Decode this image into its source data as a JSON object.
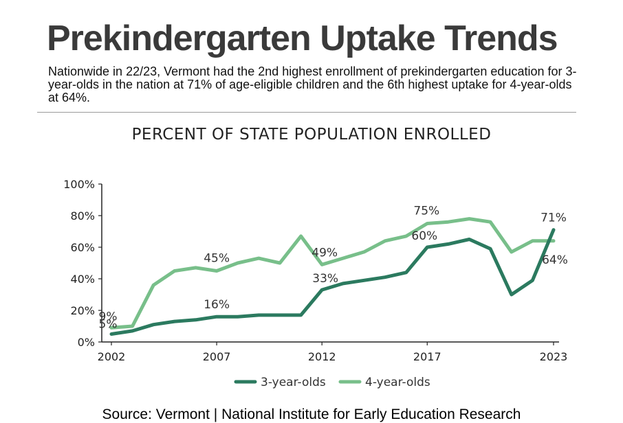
{
  "header": {
    "title": "Prekindergarten Uptake Trends",
    "subtitle": "Nationwide in 22/23, Vermont had the 2nd highest enrollment of prekindergarten education for 3-year-olds in the nation at 71% of age-eligible children and the 6th highest uptake for 4-year-olds at 64%."
  },
  "footer": {
    "source": "Source: Vermont | National Institute for Early Education Research"
  },
  "colors": {
    "three_year": "#2b7a5f",
    "four_year": "#78bf8a",
    "axis": "#222222"
  },
  "chart_data": {
    "type": "line",
    "title": "PERCENT OF STATE POPULATION ENROLLED",
    "xlabel": "",
    "ylabel": "",
    "xlim": [
      2002,
      2023
    ],
    "ylim": [
      0,
      100
    ],
    "x": [
      2002,
      2003,
      2004,
      2005,
      2006,
      2007,
      2008,
      2009,
      2010,
      2011,
      2012,
      2013,
      2014,
      2015,
      2016,
      2017,
      2018,
      2019,
      2020,
      2021,
      2022,
      2023
    ],
    "x_ticks": [
      "2002",
      "2007",
      "2012",
      "2017",
      "2023"
    ],
    "y_ticks": [
      "0%",
      "20%",
      "40%",
      "60%",
      "80%",
      "100%"
    ],
    "series": [
      {
        "name": "3-year-olds",
        "color": "#2b7a5f",
        "values": [
          5,
          7,
          11,
          13,
          14,
          16,
          16,
          17,
          17,
          17,
          33,
          37,
          39,
          41,
          44,
          60,
          62,
          65,
          59,
          30,
          39,
          71
        ],
        "labels": [
          {
            "x": 2002,
            "y": 5,
            "text": "5%"
          },
          {
            "x": 2007,
            "y": 16,
            "text": "16%"
          },
          {
            "x": 2012,
            "y": 33,
            "text": "33%"
          },
          {
            "x": 2017,
            "y": 60,
            "text": "60%"
          },
          {
            "x": 2023,
            "y": 71,
            "text": "71%"
          }
        ]
      },
      {
        "name": "4-year-olds",
        "color": "#78bf8a",
        "values": [
          9,
          10,
          36,
          45,
          47,
          45,
          50,
          53,
          50,
          67,
          49,
          53,
          57,
          64,
          67,
          75,
          76,
          78,
          76,
          57,
          64,
          64
        ],
        "labels": [
          {
            "x": 2002,
            "y": 9,
            "text": "9%"
          },
          {
            "x": 2007,
            "y": 45,
            "text": "45%"
          },
          {
            "x": 2012,
            "y": 49,
            "text": "49%"
          },
          {
            "x": 2017,
            "y": 75,
            "text": "75%"
          },
          {
            "x": 2023,
            "y": 64,
            "text": "64%"
          }
        ]
      }
    ],
    "legend_position": "bottom-center",
    "grid": false
  }
}
